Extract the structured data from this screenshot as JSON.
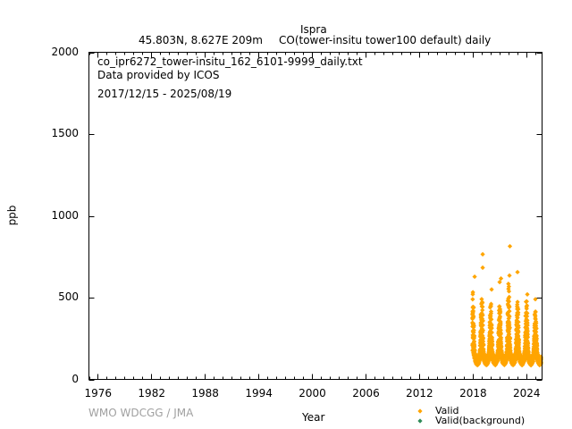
{
  "chart_data": {
    "type": "scatter",
    "title": "Ispra",
    "subtitle_location": "45.803N, 8.627E 209m",
    "subtitle_species": "CO(tower-insitu tower100 default) daily",
    "info_file": "co_ipr6272_tower-insitu_162_6101-9999_daily.txt",
    "info_provider": "Data provided by ICOS",
    "info_period": "2017/12/15 - 2025/08/19",
    "xlabel": "Year",
    "ylabel": "ppb",
    "xlim": [
      1975.0,
      2025.75
    ],
    "ylim": [
      0,
      2000
    ],
    "x_ticks": [
      "1976",
      "1982",
      "1988",
      "1994",
      "2000",
      "2006",
      "2012",
      "2018",
      "2024"
    ],
    "x_tick_values": [
      1976,
      1982,
      1988,
      1994,
      2000,
      2006,
      2012,
      2018,
      2024
    ],
    "y_ticks": [
      "0",
      "500",
      "1000",
      "1500",
      "2000"
    ],
    "y_tick_values": [
      0,
      500,
      1000,
      1500,
      2000
    ],
    "period": [
      2017.954,
      2025.632
    ],
    "seasonal_profile": {
      "winters": [
        2018.0,
        2019.0,
        2020.0,
        2021.0,
        2022.0,
        2023.0,
        2024.0,
        2025.0
      ],
      "winter_peaks": [
        540,
        560,
        470,
        470,
        600,
        490,
        510,
        440
      ],
      "summer_minimum": 100,
      "baseline": 150
    },
    "outliers": [
      {
        "x": 2018.2,
        "y": 628
      },
      {
        "x": 2019.1,
        "y": 765
      },
      {
        "x": 2019.1,
        "y": 683
      },
      {
        "x": 2021.15,
        "y": 617
      },
      {
        "x": 2021.0,
        "y": 595
      },
      {
        "x": 2022.15,
        "y": 814
      },
      {
        "x": 2022.1,
        "y": 635
      },
      {
        "x": 2023.0,
        "y": 656
      },
      {
        "x": 2020.1,
        "y": 550
      },
      {
        "x": 2024.1,
        "y": 520
      },
      {
        "x": 2025.0,
        "y": 490
      }
    ],
    "series": [
      {
        "name": "Valid",
        "color": "#ffa500"
      },
      {
        "name": "Valid(background)",
        "color": "#2e8b57"
      }
    ],
    "legend_position": "bottom-right"
  },
  "credit": "WMO WDCGG / JMA"
}
